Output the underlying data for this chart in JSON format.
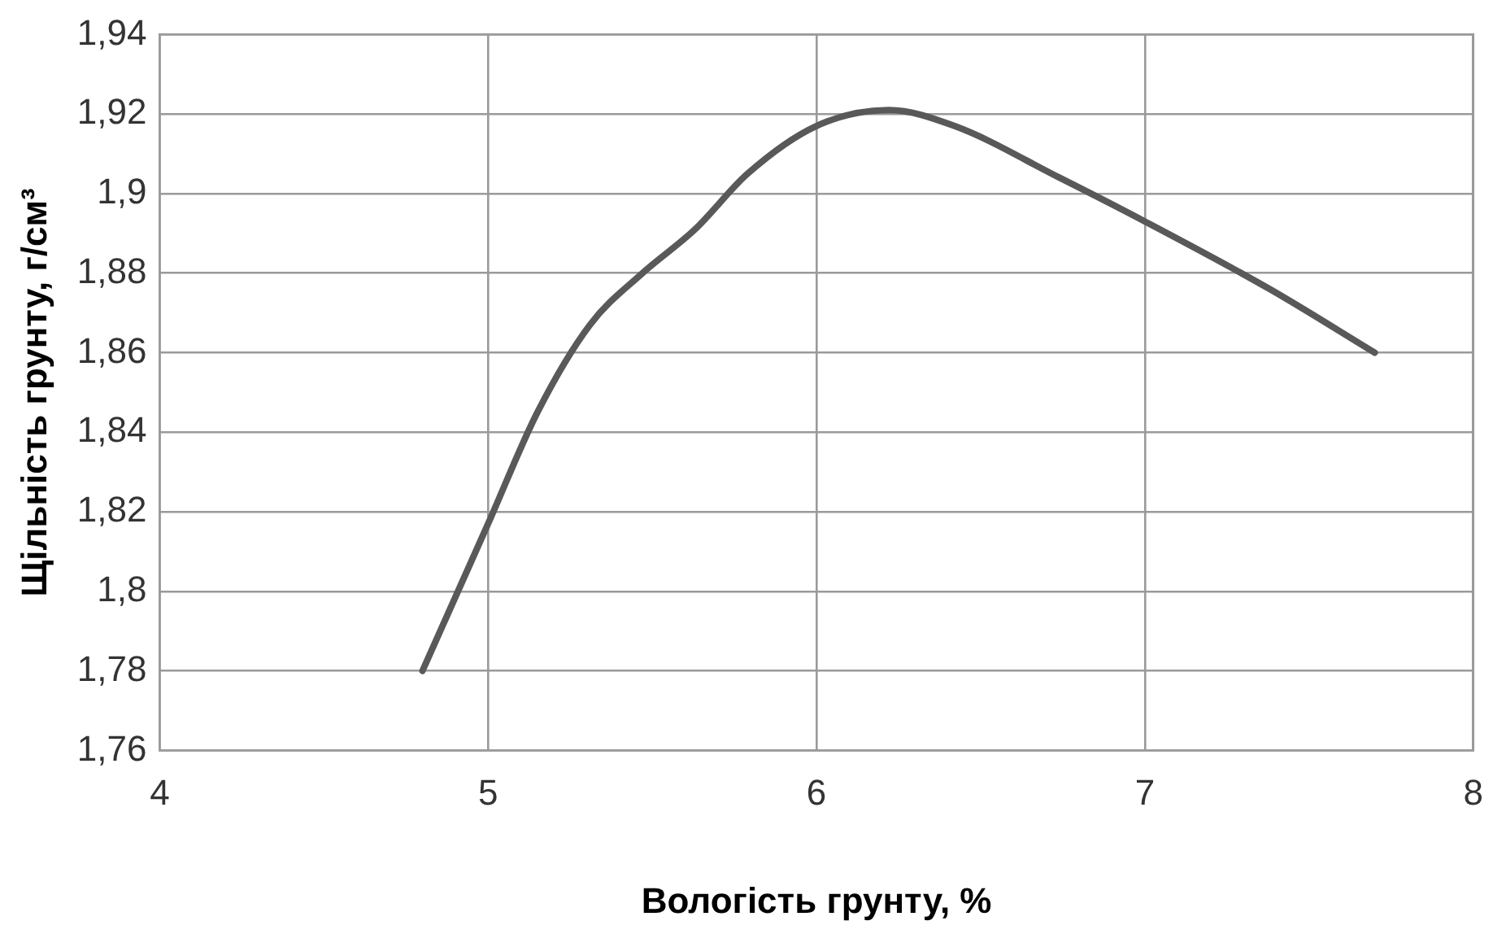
{
  "chart_data": {
    "type": "line",
    "xlabel": "Вологість грунту, %",
    "ylabel": "Щільність грунту, г/см³",
    "x": [
      4.8,
      5.0,
      5.15,
      5.31,
      5.47,
      5.63,
      5.79,
      6.0,
      6.22,
      6.42,
      6.74,
      7.0,
      7.38,
      7.7
    ],
    "series": [
      {
        "color": "#595959",
        "values": [
          1.78,
          1.817,
          1.845,
          1.867,
          1.88,
          1.891,
          1.905,
          1.917,
          1.921,
          1.917,
          1.904,
          1.893,
          1.876,
          1.86
        ]
      }
    ],
    "xlim": [
      4,
      8
    ],
    "xticks": [
      4,
      5,
      6,
      7,
      8
    ],
    "ylim": [
      1.76,
      1.94
    ],
    "yticks": [
      {
        "value": 1.76,
        "label": "1,76"
      },
      {
        "value": 1.78,
        "label": "1,78"
      },
      {
        "value": 1.8,
        "label": "1,8"
      },
      {
        "value": 1.82,
        "label": "1,82"
      },
      {
        "value": 1.84,
        "label": "1,84"
      },
      {
        "value": 1.86,
        "label": "1,86"
      },
      {
        "value": 1.88,
        "label": "1,88"
      },
      {
        "value": 1.9,
        "label": "1,9"
      },
      {
        "value": 1.92,
        "label": "1,92"
      },
      {
        "value": 1.94,
        "label": "1,94"
      }
    ],
    "grid": true,
    "marker": "none",
    "line_style": "solid"
  }
}
